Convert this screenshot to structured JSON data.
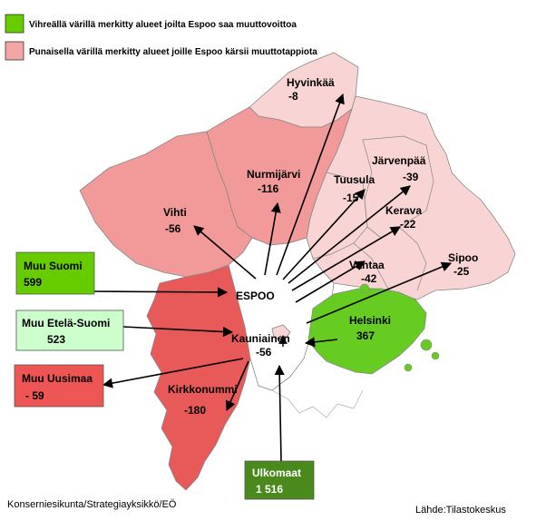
{
  "legend": {
    "gain": {
      "text": "Vihreällä värillä merkitty alueet joilta Espoo saa muuttovoittoa",
      "color": "#66cc00"
    },
    "loss": {
      "text": "Punaisella värillä merkitty alueet joille Espoo kärsii muuttotappiota",
      "color": "#f4a6a6"
    }
  },
  "center": {
    "name": "ESPOO"
  },
  "regions": [
    {
      "name": "Hyvinkää",
      "value": "-8"
    },
    {
      "name": "Nurmijärvi",
      "value": "-116"
    },
    {
      "name": "Vihti",
      "value": "-56"
    },
    {
      "name": "Tuusula",
      "value": "-15"
    },
    {
      "name": "Järvenpää",
      "value": "-39"
    },
    {
      "name": "Kerava",
      "value": "-22"
    },
    {
      "name": "Sipoo",
      "value": "-25"
    },
    {
      "name": "Vantaa",
      "value": "-42"
    },
    {
      "name": "Helsinki",
      "value": "367"
    },
    {
      "name": "Kauniainen",
      "value": "-56"
    },
    {
      "name": "Kirkkonummi",
      "value": "-180"
    }
  ],
  "boxes": [
    {
      "name": "Muu Suomi",
      "value": "599",
      "color": "#66cc00"
    },
    {
      "name": "Muu Etelä-Suomi",
      "value": "523",
      "color": "#ccffcc"
    },
    {
      "name": "Muu Uusimaa",
      "value": "- 59",
      "color": "#ee5555"
    },
    {
      "name": "Ulkomaat",
      "value": "1 516",
      "color": "#4a8a1c"
    }
  ],
  "colors": {
    "light_red": "#f9d4d4",
    "mid_red": "#f29a9a",
    "dark_red": "#e85a5a",
    "green": "#66cc22",
    "border": "#888888"
  },
  "footer": {
    "left": "Konserniesikunta/Strategiayksikkö/EÖ",
    "right": "Lähde:Tilastokeskus"
  }
}
